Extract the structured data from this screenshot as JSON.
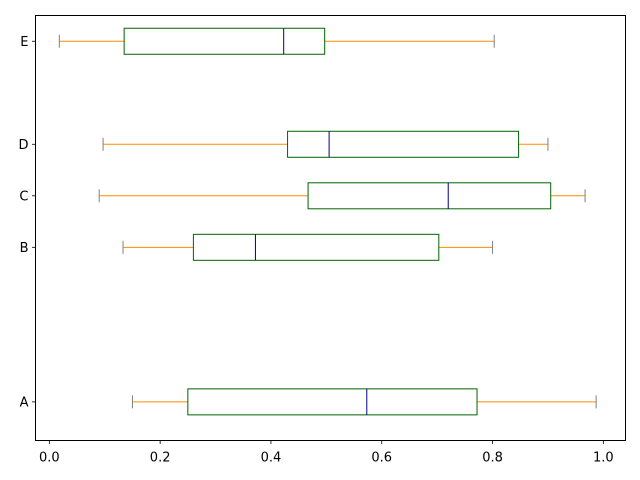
{
  "chart_data": {
    "type": "boxplot",
    "orientation": "horizontal",
    "title": "",
    "xlabel": "",
    "ylabel": "",
    "xlim": [
      -0.025,
      1.04
    ],
    "ylim": [
      0.25,
      8.5
    ],
    "x_ticks": [
      0.0,
      0.2,
      0.4,
      0.6,
      0.8,
      1.0
    ],
    "x_tick_labels": [
      "0.0",
      "0.2",
      "0.4",
      "0.6",
      "0.8",
      "1.0"
    ],
    "grid": false,
    "colors": {
      "box": "#006400",
      "median": "#00008b",
      "whisker": "#ff8c00",
      "cap": "#808080"
    },
    "boxes": [
      {
        "label": "A",
        "position": 1,
        "whislo": 0.15,
        "q1": 0.25,
        "median": 0.573,
        "q3": 0.772,
        "whishi": 0.987
      },
      {
        "label": "B",
        "position": 4,
        "whislo": 0.133,
        "q1": 0.26,
        "median": 0.372,
        "q3": 0.703,
        "whishi": 0.8
      },
      {
        "label": "C",
        "position": 5,
        "whislo": 0.09,
        "q1": 0.467,
        "median": 0.72,
        "q3": 0.905,
        "whishi": 0.967
      },
      {
        "label": "D",
        "position": 6,
        "whislo": 0.097,
        "q1": 0.43,
        "median": 0.505,
        "q3": 0.847,
        "whishi": 0.9
      },
      {
        "label": "E",
        "position": 8,
        "whislo": 0.018,
        "q1": 0.135,
        "median": 0.423,
        "q3": 0.497,
        "whishi": 0.803
      }
    ]
  }
}
